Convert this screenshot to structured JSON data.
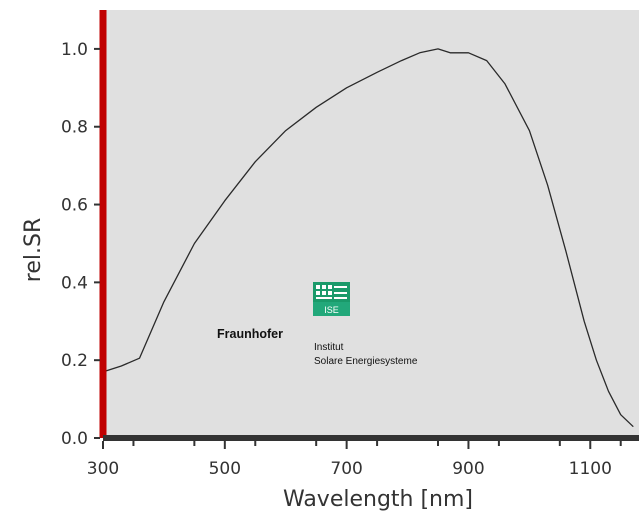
{
  "chart_data": {
    "type": "line",
    "xlabel": "Wavelength [nm]",
    "ylabel": "rel.SR",
    "xlim": [
      300,
      1180
    ],
    "ylim": [
      0,
      1.1
    ],
    "x_ticks": [
      "300",
      "500",
      "700",
      "900",
      "1100"
    ],
    "y_ticks": [
      "0.0",
      "0.2",
      "0.4",
      "0.6",
      "0.8",
      "1.0"
    ],
    "grid": false,
    "series": [
      {
        "x": [
          300,
          330,
          360,
          400,
          450,
          500,
          550,
          600,
          650,
          700,
          750,
          790,
          820,
          850,
          870,
          900,
          930,
          960,
          1000,
          1030,
          1060,
          1090,
          1110,
          1130,
          1150,
          1170
        ],
        "y": [
          0.17,
          0.185,
          0.205,
          0.35,
          0.5,
          0.61,
          0.71,
          0.79,
          0.85,
          0.9,
          0.94,
          0.97,
          0.99,
          1.0,
          0.99,
          0.99,
          0.97,
          0.91,
          0.79,
          0.65,
          0.48,
          0.3,
          0.2,
          0.12,
          0.06,
          0.03
        ]
      }
    ],
    "colors": {
      "plot_background": "#e0e0e0",
      "curve": "#2a2a2a",
      "left_axis": "#c00000",
      "bottom_axis": "#333333",
      "logo_green": "#1a9a6a"
    }
  },
  "logo": {
    "brand": "Fraunhofer",
    "badge": "ISE",
    "line1": "Institut",
    "line2": "Solare Energiesysteme"
  }
}
